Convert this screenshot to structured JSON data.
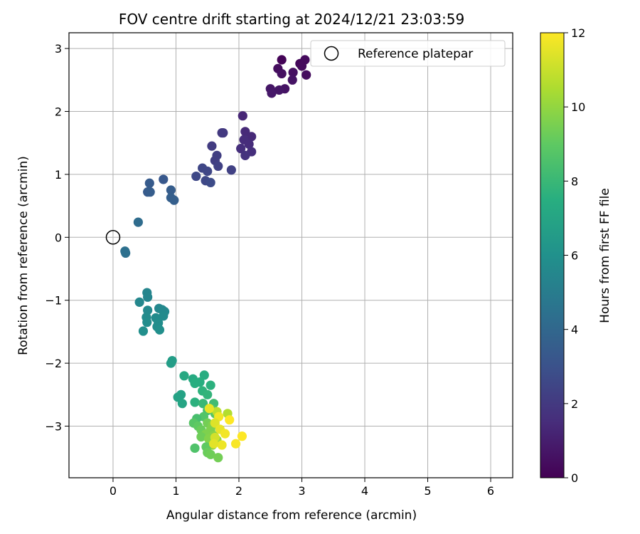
{
  "chart_data": {
    "type": "scatter",
    "title": "FOV centre drift starting at 2024/12/21 23:03:59",
    "xlabel": "Angular distance from reference (arcmin)",
    "ylabel": "Rotation from reference (arcmin)",
    "xlim": [
      -0.7,
      6.35
    ],
    "ylim": [
      -3.82,
      3.25
    ],
    "xticks": [
      0,
      1,
      2,
      3,
      4,
      5,
      6
    ],
    "yticks": [
      -3,
      -2,
      -1,
      0,
      1,
      2,
      3
    ],
    "grid": true,
    "legend": {
      "position": "top-right",
      "entries": [
        "Reference platepar"
      ]
    },
    "reference_point": {
      "label": "Reference platepar",
      "x": 0.0,
      "y": 0.0
    },
    "colorbar": {
      "label": "Hours from first FF file",
      "colormap": "viridis",
      "range": [
        0,
        12
      ],
      "ticks": [
        0,
        2,
        4,
        6,
        8,
        10,
        12
      ]
    },
    "series": [
      {
        "points": [
          {
            "x": 2.68,
            "y": 2.82,
            "c": 0.1
          },
          {
            "x": 2.97,
            "y": 2.76,
            "c": 0.2
          },
          {
            "x": 3.05,
            "y": 2.82,
            "c": 0.3
          },
          {
            "x": 3.0,
            "y": 2.72,
            "c": 0.3
          },
          {
            "x": 3.07,
            "y": 2.58,
            "c": 0.4
          },
          {
            "x": 2.62,
            "y": 2.68,
            "c": 0.4
          },
          {
            "x": 2.86,
            "y": 2.62,
            "c": 0.5
          },
          {
            "x": 2.68,
            "y": 2.6,
            "c": 0.5
          },
          {
            "x": 2.85,
            "y": 2.5,
            "c": 0.6
          },
          {
            "x": 2.73,
            "y": 2.36,
            "c": 0.6
          },
          {
            "x": 2.5,
            "y": 2.36,
            "c": 0.7
          },
          {
            "x": 2.64,
            "y": 2.34,
            "c": 0.7
          },
          {
            "x": 2.52,
            "y": 2.29,
            "c": 0.8
          },
          {
            "x": 2.06,
            "y": 1.93,
            "c": 1.3
          },
          {
            "x": 2.1,
            "y": 1.68,
            "c": 1.4
          },
          {
            "x": 2.2,
            "y": 1.6,
            "c": 1.4
          },
          {
            "x": 2.08,
            "y": 1.55,
            "c": 1.5
          },
          {
            "x": 2.16,
            "y": 1.48,
            "c": 1.5
          },
          {
            "x": 2.03,
            "y": 1.41,
            "c": 1.6
          },
          {
            "x": 2.2,
            "y": 1.36,
            "c": 1.6
          },
          {
            "x": 2.1,
            "y": 1.3,
            "c": 1.7
          },
          {
            "x": 1.75,
            "y": 1.66,
            "c": 2.0
          },
          {
            "x": 1.73,
            "y": 1.66,
            "c": 2.0
          },
          {
            "x": 1.57,
            "y": 1.45,
            "c": 2.1
          },
          {
            "x": 1.65,
            "y": 1.3,
            "c": 2.2
          },
          {
            "x": 1.62,
            "y": 1.22,
            "c": 2.2
          },
          {
            "x": 1.67,
            "y": 1.13,
            "c": 2.3
          },
          {
            "x": 1.88,
            "y": 1.07,
            "c": 2.3
          },
          {
            "x": 1.42,
            "y": 1.1,
            "c": 2.5
          },
          {
            "x": 1.5,
            "y": 1.05,
            "c": 2.5
          },
          {
            "x": 1.32,
            "y": 0.97,
            "c": 2.6
          },
          {
            "x": 1.47,
            "y": 0.9,
            "c": 2.6
          },
          {
            "x": 1.55,
            "y": 0.87,
            "c": 2.7
          },
          {
            "x": 0.8,
            "y": 0.92,
            "c": 3.3
          },
          {
            "x": 0.58,
            "y": 0.86,
            "c": 3.4
          },
          {
            "x": 0.55,
            "y": 0.72,
            "c": 3.4
          },
          {
            "x": 0.59,
            "y": 0.72,
            "c": 3.5
          },
          {
            "x": 0.92,
            "y": 0.75,
            "c": 3.5
          },
          {
            "x": 0.92,
            "y": 0.63,
            "c": 3.6
          },
          {
            "x": 0.97,
            "y": 0.59,
            "c": 3.6
          },
          {
            "x": 0.4,
            "y": 0.24,
            "c": 4.2
          },
          {
            "x": 0.19,
            "y": -0.22,
            "c": 4.4
          },
          {
            "x": 0.2,
            "y": -0.25,
            "c": 4.4
          },
          {
            "x": 0.54,
            "y": -0.88,
            "c": 5.4
          },
          {
            "x": 0.55,
            "y": -0.95,
            "c": 5.4
          },
          {
            "x": 0.42,
            "y": -1.03,
            "c": 5.5
          },
          {
            "x": 0.73,
            "y": -1.13,
            "c": 5.5
          },
          {
            "x": 0.78,
            "y": -1.15,
            "c": 5.6
          },
          {
            "x": 0.82,
            "y": -1.18,
            "c": 5.6
          },
          {
            "x": 0.55,
            "y": -1.16,
            "c": 5.6
          },
          {
            "x": 0.8,
            "y": -1.25,
            "c": 5.7
          },
          {
            "x": 0.68,
            "y": -1.28,
            "c": 5.7
          },
          {
            "x": 0.53,
            "y": -1.27,
            "c": 5.7
          },
          {
            "x": 0.72,
            "y": -1.36,
            "c": 5.8
          },
          {
            "x": 0.54,
            "y": -1.35,
            "c": 5.8
          },
          {
            "x": 0.7,
            "y": -1.42,
            "c": 5.8
          },
          {
            "x": 0.74,
            "y": -1.47,
            "c": 5.9
          },
          {
            "x": 0.48,
            "y": -1.49,
            "c": 5.9
          },
          {
            "x": 0.94,
            "y": -1.96,
            "c": 6.6
          },
          {
            "x": 0.92,
            "y": -2.0,
            "c": 6.6
          },
          {
            "x": 1.13,
            "y": -2.2,
            "c": 7.2
          },
          {
            "x": 1.27,
            "y": -2.25,
            "c": 7.3
          },
          {
            "x": 1.45,
            "y": -2.19,
            "c": 7.4
          },
          {
            "x": 1.3,
            "y": -2.32,
            "c": 7.5
          },
          {
            "x": 1.38,
            "y": -2.3,
            "c": 7.5
          },
          {
            "x": 1.55,
            "y": -2.35,
            "c": 7.6
          },
          {
            "x": 1.42,
            "y": -2.44,
            "c": 7.7
          },
          {
            "x": 1.5,
            "y": -2.5,
            "c": 7.8
          },
          {
            "x": 1.08,
            "y": -2.5,
            "c": 6.9
          },
          {
            "x": 1.03,
            "y": -2.54,
            "c": 6.9
          },
          {
            "x": 1.1,
            "y": -2.64,
            "c": 7.0
          },
          {
            "x": 1.3,
            "y": -2.62,
            "c": 7.6
          },
          {
            "x": 1.43,
            "y": -2.64,
            "c": 8.0
          },
          {
            "x": 1.6,
            "y": -2.64,
            "c": 8.2
          },
          {
            "x": 1.5,
            "y": -2.75,
            "c": 8.4
          },
          {
            "x": 1.57,
            "y": -2.73,
            "c": 8.6
          },
          {
            "x": 1.62,
            "y": -2.8,
            "c": 8.8
          },
          {
            "x": 1.44,
            "y": -2.85,
            "c": 8.7
          },
          {
            "x": 1.33,
            "y": -2.88,
            "c": 8.4
          },
          {
            "x": 1.28,
            "y": -2.95,
            "c": 8.8
          },
          {
            "x": 1.5,
            "y": -2.95,
            "c": 9.4
          },
          {
            "x": 1.58,
            "y": -2.98,
            "c": 9.6
          },
          {
            "x": 1.35,
            "y": -3.0,
            "c": 9.0
          },
          {
            "x": 1.4,
            "y": -3.06,
            "c": 9.2
          },
          {
            "x": 1.55,
            "y": -3.06,
            "c": 9.6
          },
          {
            "x": 1.47,
            "y": -3.13,
            "c": 9.6
          },
          {
            "x": 1.6,
            "y": -3.15,
            "c": 9.8
          },
          {
            "x": 1.4,
            "y": -3.17,
            "c": 9.3
          },
          {
            "x": 1.52,
            "y": -3.2,
            "c": 9.7
          },
          {
            "x": 1.65,
            "y": -3.22,
            "c": 10.0
          },
          {
            "x": 1.58,
            "y": -3.3,
            "c": 9.9
          },
          {
            "x": 1.48,
            "y": -3.33,
            "c": 9.0
          },
          {
            "x": 1.3,
            "y": -3.35,
            "c": 8.6
          },
          {
            "x": 1.5,
            "y": -3.42,
            "c": 9.2
          },
          {
            "x": 1.55,
            "y": -3.45,
            "c": 9.3
          },
          {
            "x": 1.67,
            "y": -3.5,
            "c": 9.4
          },
          {
            "x": 1.82,
            "y": -2.8,
            "c": 10.6
          },
          {
            "x": 1.65,
            "y": -2.77,
            "c": 10.8
          },
          {
            "x": 1.53,
            "y": -2.72,
            "c": 11.6
          },
          {
            "x": 1.68,
            "y": -2.85,
            "c": 11.8
          },
          {
            "x": 1.85,
            "y": -2.9,
            "c": 12.0
          },
          {
            "x": 1.62,
            "y": -2.95,
            "c": 11.4
          },
          {
            "x": 1.7,
            "y": -3.05,
            "c": 11.6
          },
          {
            "x": 1.78,
            "y": -3.12,
            "c": 11.8
          },
          {
            "x": 1.62,
            "y": -3.18,
            "c": 11.2
          },
          {
            "x": 2.05,
            "y": -3.16,
            "c": 12.0
          },
          {
            "x": 1.73,
            "y": -3.3,
            "c": 11.7
          },
          {
            "x": 1.95,
            "y": -3.28,
            "c": 11.9
          },
          {
            "x": 1.6,
            "y": -3.28,
            "c": 11.5
          }
        ]
      }
    ]
  }
}
